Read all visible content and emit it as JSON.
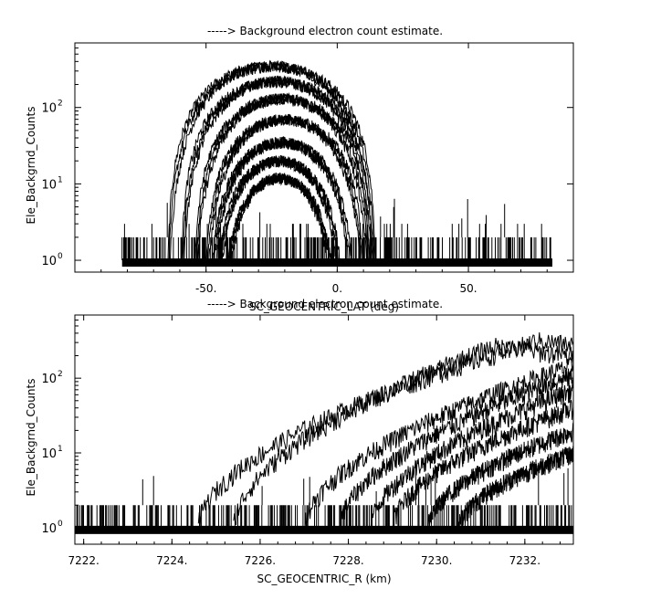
{
  "chart_data": [
    {
      "type": "line",
      "title": "-----> Background electron count estimate.",
      "xlabel": "SC_GEOCENTRIC_LAT (deg)",
      "ylabel": "Ele_Backgrnd_Counts",
      "xlim": [
        -100,
        90
      ],
      "ylim": [
        0.7,
        700
      ],
      "yscale": "log",
      "x_ticks": [
        -50,
        0,
        50
      ],
      "x_tick_labels": [
        "-50.",
        "0.",
        "50."
      ],
      "y_ticks": [
        1,
        10,
        100
      ],
      "y_tick_labels": [
        "10^0",
        "10^1",
        "10^2"
      ],
      "noise_floor": {
        "x_range": [
          -82,
          82
        ],
        "levels": [
          1,
          2,
          3
        ]
      },
      "envelopes": [
        {
          "center": -25,
          "half_width": 40,
          "peak": 350
        },
        {
          "center": -23,
          "half_width": 37,
          "peak": 220
        },
        {
          "center": -21,
          "half_width": 34,
          "peak": 130
        },
        {
          "center": -20,
          "half_width": 31,
          "peak": 70
        },
        {
          "center": -21,
          "half_width": 28,
          "peak": 35
        },
        {
          "center": -22,
          "half_width": 25,
          "peak": 20
        },
        {
          "center": -22,
          "half_width": 22,
          "peak": 12
        }
      ],
      "legend": "none",
      "grid": false
    },
    {
      "type": "line",
      "title": "-----> Background electron count estimate.",
      "xlabel": "SC_GEOCENTRIC_R (km)",
      "ylabel": "Ele_Backgrnd_Counts",
      "xlim": [
        7221.8,
        7233.1
      ],
      "ylim": [
        0.6,
        700
      ],
      "yscale": "log",
      "x_ticks": [
        7222,
        7224,
        7226,
        7228,
        7230,
        7232
      ],
      "x_tick_labels": [
        "7222.",
        "7224.",
        "7226.",
        "7228.",
        "7230.",
        "7232."
      ],
      "y_ticks": [
        1,
        10,
        100
      ],
      "y_tick_labels": [
        "10^0",
        "10^1",
        "10^2"
      ],
      "noise_floor": {
        "x_range": [
          7221.8,
          7233.1
        ],
        "levels": [
          1,
          2
        ]
      },
      "curves": [
        {
          "start": 7224.6,
          "peak_x": 7232.3,
          "peak": 320
        },
        {
          "start": 7225.4,
          "peak_x": 7231.3,
          "peak": 270
        },
        {
          "start": 7227.0,
          "peak_x": 7233.1,
          "peak": 150
        },
        {
          "start": 7227.8,
          "peak_x": 7233.1,
          "peak": 110
        },
        {
          "start": 7228.5,
          "peak_x": 7233.1,
          "peak": 70
        },
        {
          "start": 7229.0,
          "peak_x": 7233.1,
          "peak": 40
        },
        {
          "start": 7229.8,
          "peak_x": 7233.1,
          "peak": 20
        },
        {
          "start": 7230.5,
          "peak_x": 7233.1,
          "peak": 10
        }
      ],
      "legend": "none",
      "grid": false
    }
  ]
}
